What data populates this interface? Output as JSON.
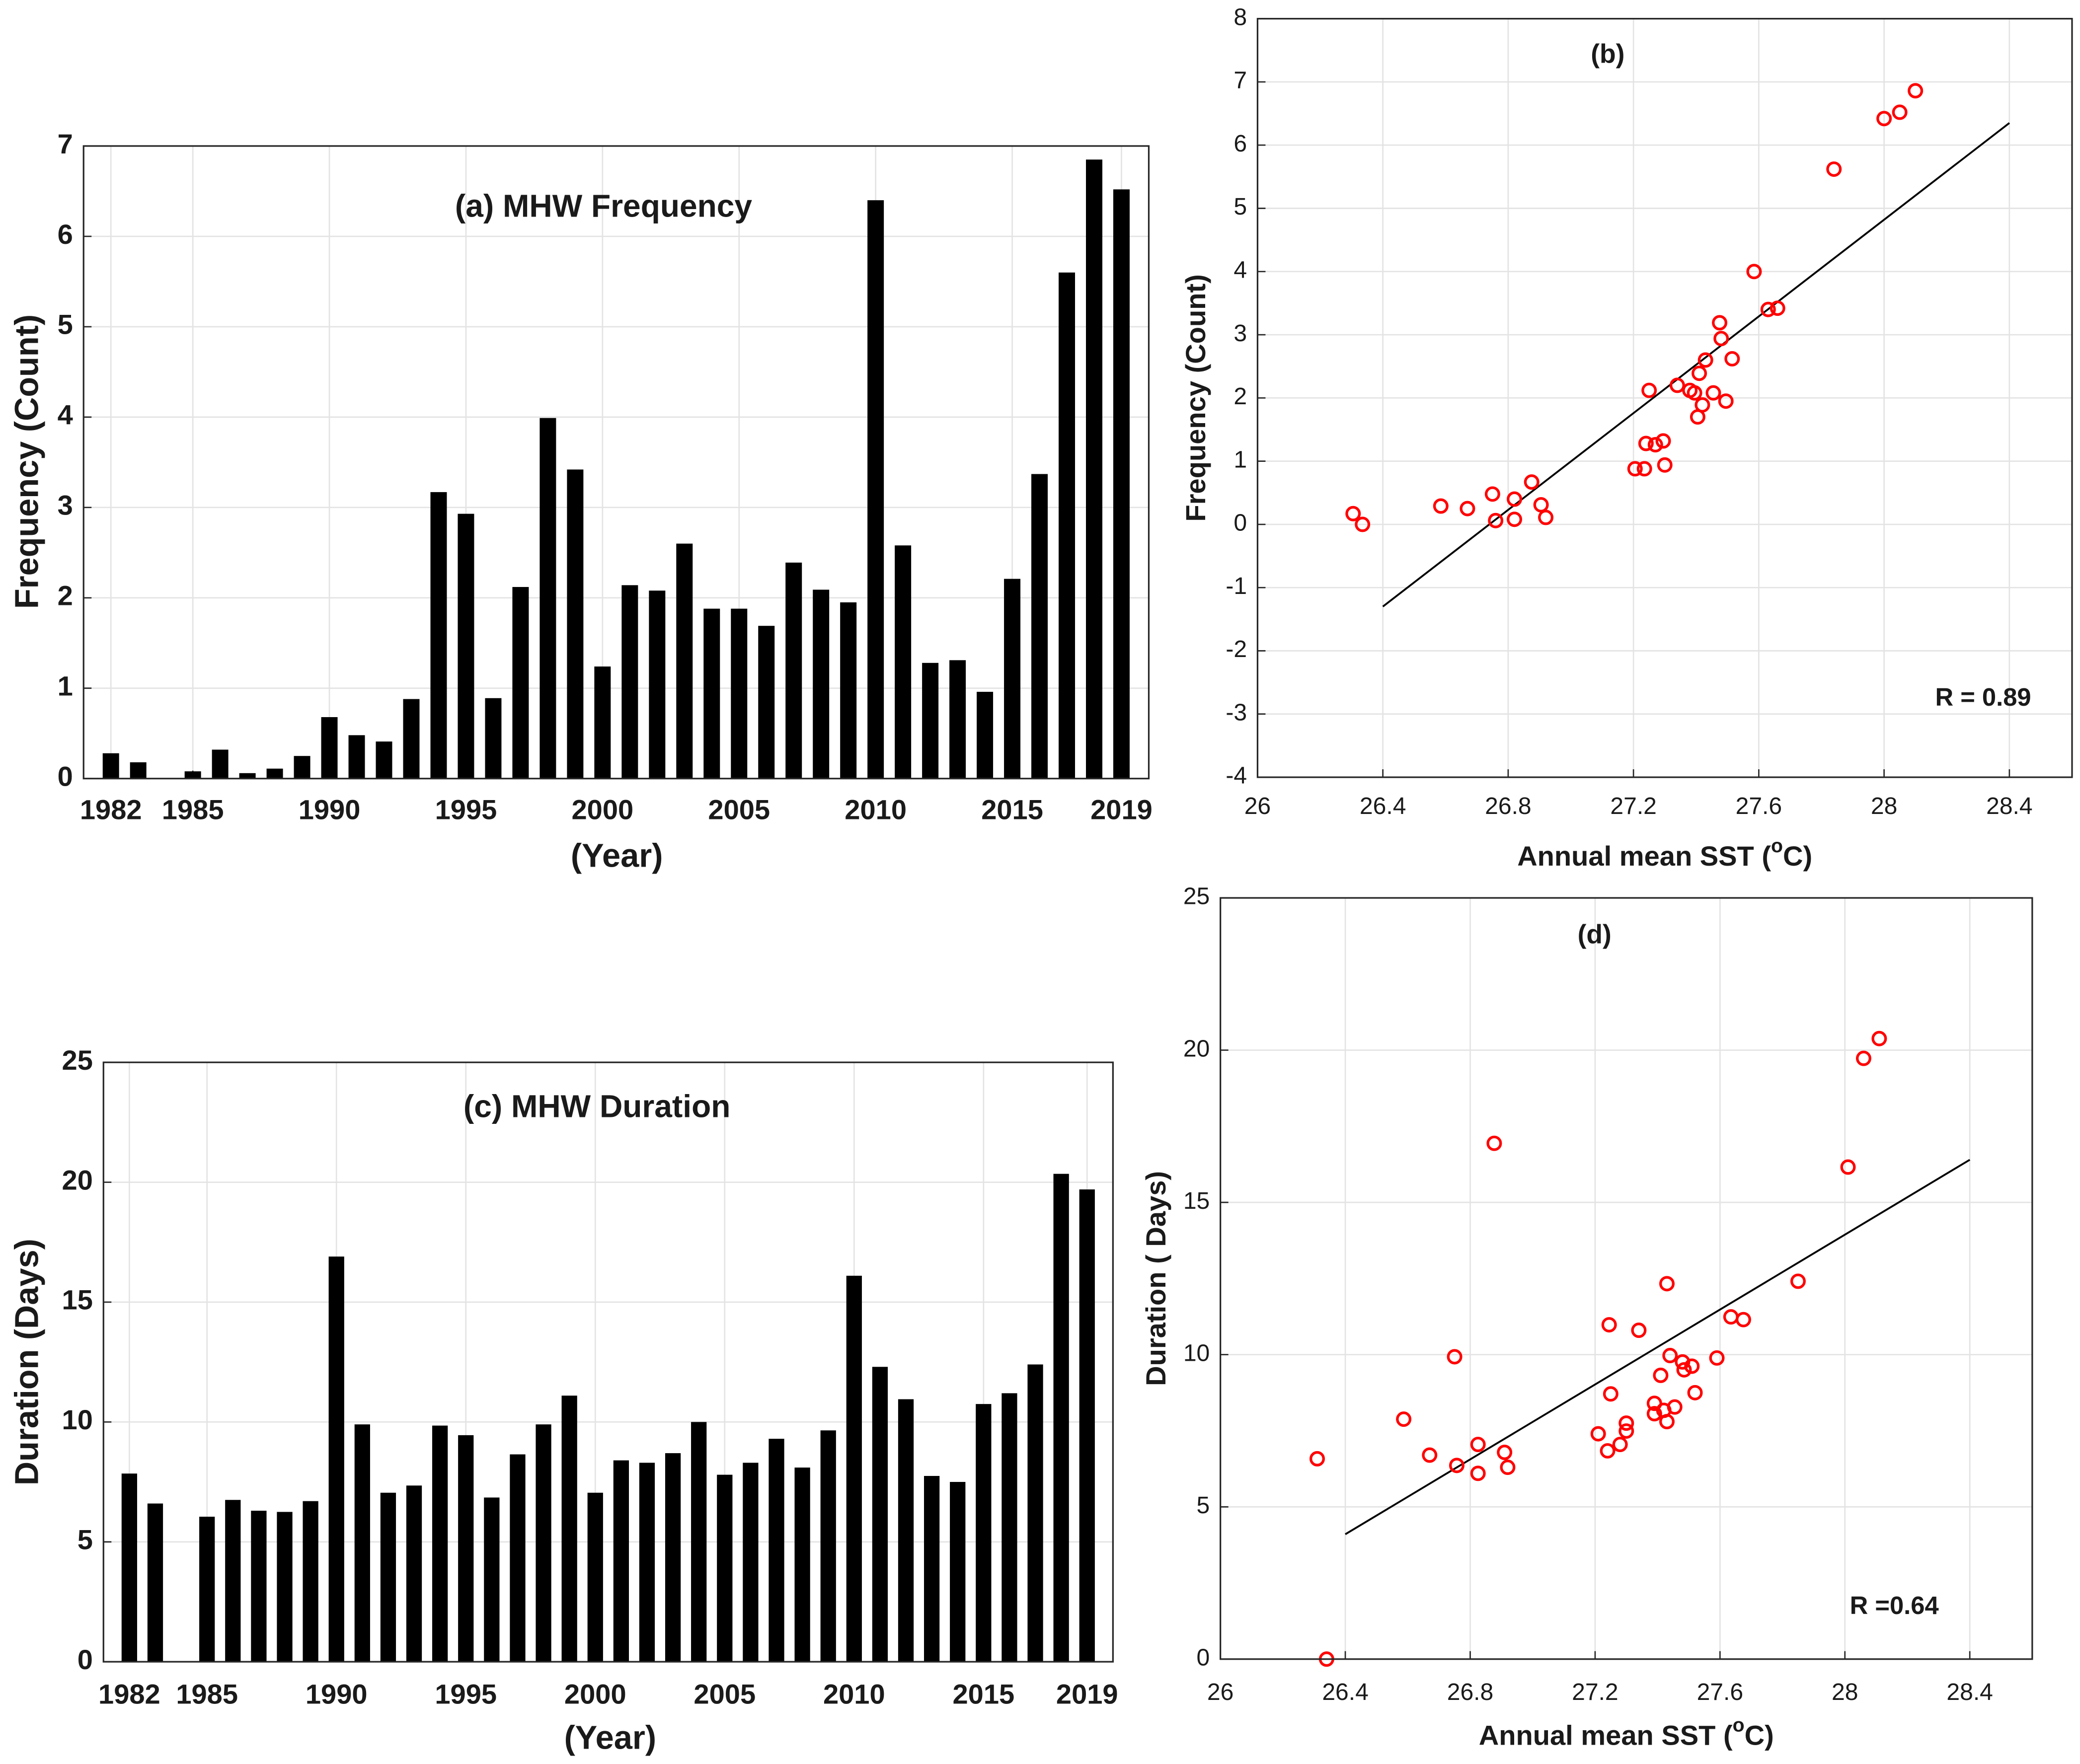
{
  "chart_data": [
    {
      "type": "bar",
      "title": "(a) MHW Frequency",
      "xlabel": "(Year)",
      "ylabel": "Frequency (Count)",
      "x": [
        1982,
        1983,
        1984,
        1985,
        1986,
        1987,
        1988,
        1989,
        1990,
        1991,
        1992,
        1993,
        1994,
        1995,
        1996,
        1997,
        1998,
        1999,
        2000,
        2001,
        2002,
        2003,
        2004,
        2005,
        2006,
        2007,
        2008,
        2009,
        2010,
        2011,
        2012,
        2013,
        2014,
        2015,
        2016,
        2017,
        2018,
        2019
      ],
      "values": [
        0.28,
        0.18,
        0,
        0.08,
        0.32,
        0.06,
        0.11,
        0.25,
        0.68,
        0.48,
        0.41,
        0.88,
        3.17,
        2.93,
        0.89,
        2.12,
        3.99,
        3.42,
        1.24,
        2.14,
        2.08,
        2.6,
        1.88,
        1.88,
        1.69,
        2.39,
        2.09,
        1.95,
        6.4,
        2.58,
        1.28,
        1.31,
        0.96,
        2.21,
        3.37,
        5.6,
        6.85,
        6.52
      ],
      "color": "#000000",
      "xlim": [
        1981,
        2020
      ],
      "xticks": [
        1982,
        1985,
        1990,
        1995,
        2000,
        2005,
        2010,
        2015,
        2019
      ],
      "ylim": [
        0,
        7
      ],
      "yticks": [
        0,
        1,
        2,
        3,
        4,
        5,
        6,
        7
      ],
      "grid": true
    },
    {
      "type": "scatter",
      "title": "(b)",
      "xlabel": [
        "Annual mean SST (",
        "o",
        "C)"
      ],
      "ylabel": "Frequency (Count)",
      "x": [
        26.305,
        26.335,
        26.585,
        26.67,
        26.75,
        26.76,
        26.82,
        26.82,
        26.875,
        26.905,
        26.92,
        27.205,
        27.235,
        27.24,
        27.25,
        27.27,
        27.295,
        27.3,
        27.34,
        27.38,
        27.395,
        27.405,
        27.41,
        27.42,
        27.43,
        27.455,
        27.475,
        27.48,
        27.495,
        27.515,
        27.585,
        27.63,
        27.66,
        27.84,
        28.0,
        28.05,
        28.1
      ],
      "values": [
        0.17,
        0.0,
        0.29,
        0.25,
        0.48,
        0.06,
        0.4,
        0.08,
        0.67,
        0.31,
        0.11,
        0.88,
        0.88,
        1.28,
        2.12,
        1.26,
        1.32,
        0.94,
        2.2,
        2.12,
        2.08,
        1.7,
        2.39,
        1.89,
        2.6,
        2.08,
        3.19,
        2.94,
        1.95,
        2.62,
        4.0,
        3.4,
        3.42,
        5.62,
        6.42,
        6.52,
        6.86
      ],
      "color": "#ff0000",
      "fit_line": {
        "x": [
          26.4,
          28.4
        ],
        "values": [
          -1.3,
          6.35
        ],
        "color": "#000000"
      },
      "annotation": "R = 0.89",
      "xlim": [
        26,
        28.6
      ],
      "xticks": [
        26,
        26.4,
        26.8,
        27.2,
        27.6,
        28,
        28.4
      ],
      "ylim": [
        -4,
        8
      ],
      "yticks": [
        -4,
        -3,
        -2,
        -1,
        0,
        1,
        2,
        3,
        4,
        5,
        6,
        7,
        8
      ],
      "grid": true
    },
    {
      "type": "bar",
      "title": "(c) MHW Duration",
      "xlabel": "(Year)",
      "ylabel": "Duration (Days)",
      "x": [
        1982,
        1983,
        1984,
        1985,
        1986,
        1987,
        1988,
        1989,
        1990,
        1991,
        1992,
        1993,
        1994,
        1995,
        1996,
        1997,
        1998,
        1999,
        2000,
        2001,
        2002,
        2003,
        2004,
        2005,
        2006,
        2007,
        2008,
        2009,
        2010,
        2011,
        2012,
        2013,
        2014,
        2015,
        2016,
        2017,
        2018,
        2019
      ],
      "values": [
        7.85,
        6.6,
        0,
        6.05,
        6.75,
        6.3,
        6.25,
        6.7,
        16.9,
        9.9,
        7.05,
        7.35,
        9.85,
        9.45,
        6.85,
        8.65,
        9.9,
        11.1,
        7.05,
        8.4,
        8.3,
        8.7,
        10,
        7.8,
        8.3,
        9.3,
        8.1,
        9.65,
        16.1,
        12.3,
        10.95,
        7.75,
        7.5,
        10.75,
        11.2,
        12.4,
        20.35,
        19.7
      ],
      "color": "#000000",
      "xlim": [
        1981,
        2020
      ],
      "xticks": [
        1982,
        1985,
        1990,
        1995,
        2000,
        2005,
        2010,
        2015,
        2019
      ],
      "ylim": [
        0,
        25
      ],
      "yticks": [
        0,
        5,
        10,
        15,
        20,
        25
      ],
      "grid": true
    },
    {
      "type": "scatter",
      "title": "(d)",
      "xlabel": [
        "Annual mean SST (",
        "o",
        "C)"
      ],
      "ylabel": "Duration ( Days)",
      "x": [
        26.31,
        26.34,
        26.587,
        26.67,
        26.75,
        26.757,
        26.825,
        26.825,
        26.877,
        26.91,
        26.92,
        27.21,
        27.24,
        27.245,
        27.25,
        27.28,
        27.3,
        27.3,
        27.34,
        27.39,
        27.39,
        27.41,
        27.42,
        27.43,
        27.43,
        27.44,
        27.455,
        27.48,
        27.485,
        27.51,
        27.52,
        27.59,
        27.635,
        27.675,
        27.85,
        28.01,
        28.06,
        28.11
      ],
      "values": [
        6.58,
        0.0,
        7.88,
        6.7,
        9.93,
        6.36,
        7.05,
        6.1,
        16.94,
        6.79,
        6.3,
        7.4,
        6.84,
        10.98,
        8.71,
        7.05,
        7.49,
        7.75,
        10.8,
        8.4,
        8.06,
        9.32,
        8.17,
        7.8,
        12.33,
        9.97,
        8.28,
        9.76,
        9.5,
        9.62,
        8.75,
        9.89,
        11.24,
        11.15,
        12.41,
        16.16,
        19.73,
        20.38
      ],
      "color": "#ff0000",
      "fit_line": {
        "x": [
          26.4,
          28.4
        ],
        "values": [
          4.1,
          16.4
        ],
        "color": "#000000"
      },
      "annotation": "R =0.64",
      "xlim": [
        26,
        28.6
      ],
      "xticks": [
        26,
        26.4,
        26.8,
        27.2,
        27.6,
        28,
        28.4
      ],
      "ylim": [
        0,
        25
      ],
      "yticks": [
        0,
        5,
        10,
        15,
        20,
        25
      ],
      "grid": true
    }
  ]
}
